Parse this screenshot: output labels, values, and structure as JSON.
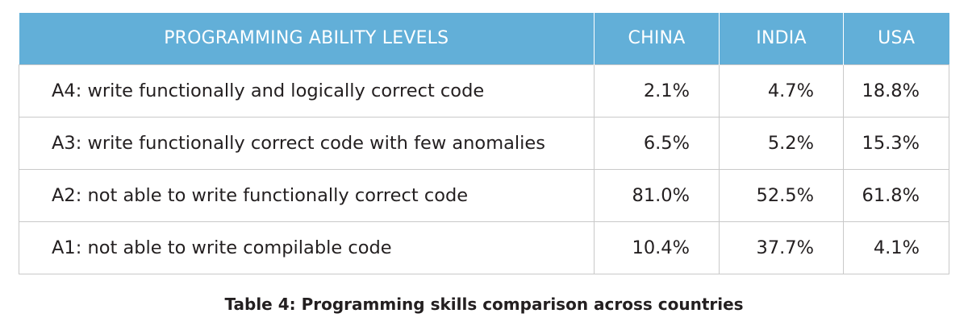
{
  "table": {
    "columns": [
      "PROGRAMMING ABILITY LEVELS",
      "CHINA",
      "INDIA",
      "USA"
    ],
    "rows": [
      {
        "level": "A4: write functionally and logically correct code",
        "china": "2.1%",
        "india": "4.7%",
        "usa": "18.8%"
      },
      {
        "level": "A3: write functionally correct code with few anomalies",
        "china": "6.5%",
        "india": "5.2%",
        "usa": "15.3%"
      },
      {
        "level": "A2: not able to write functionally correct code",
        "china": "81.0%",
        "india": "52.5%",
        "usa": "61.8%"
      },
      {
        "level": "A1: not able to write compilable code",
        "china": "10.4%",
        "india": "37.7%",
        "usa": "4.1%"
      }
    ],
    "caption": "Table 4: Programming skills comparison across countries"
  },
  "colors": {
    "header_background": "#62afd8",
    "header_text": "#ffffff",
    "border": "#c9c9c9",
    "text": "#231f20"
  }
}
